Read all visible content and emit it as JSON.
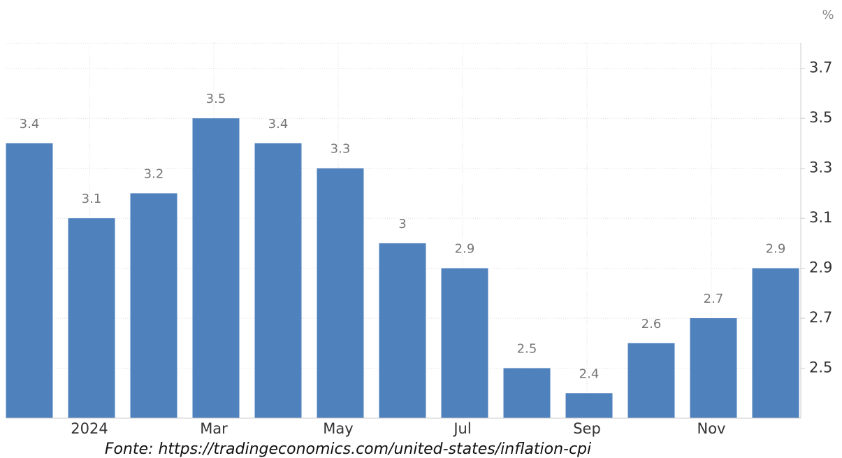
{
  "chart_data": {
    "type": "bar",
    "unit": "%",
    "categories": [
      null,
      "2024",
      null,
      "Mar",
      null,
      "May",
      null,
      "Jul",
      null,
      "Sep",
      null,
      "Nov",
      null
    ],
    "values": [
      3.4,
      3.1,
      3.2,
      3.5,
      3.4,
      3.3,
      3,
      2.9,
      2.5,
      2.4,
      2.6,
      2.7,
      2.9
    ],
    "color": "#4f81bd",
    "ylim": [
      2.3,
      3.8
    ],
    "yticks": [
      2.5,
      2.7,
      2.9,
      3.1,
      3.3,
      3.5,
      3.7
    ],
    "grid": true,
    "y_axis_side": "right",
    "source": "Fonte: https://tradingeconomics.com/united-states/inflation-cpi"
  }
}
